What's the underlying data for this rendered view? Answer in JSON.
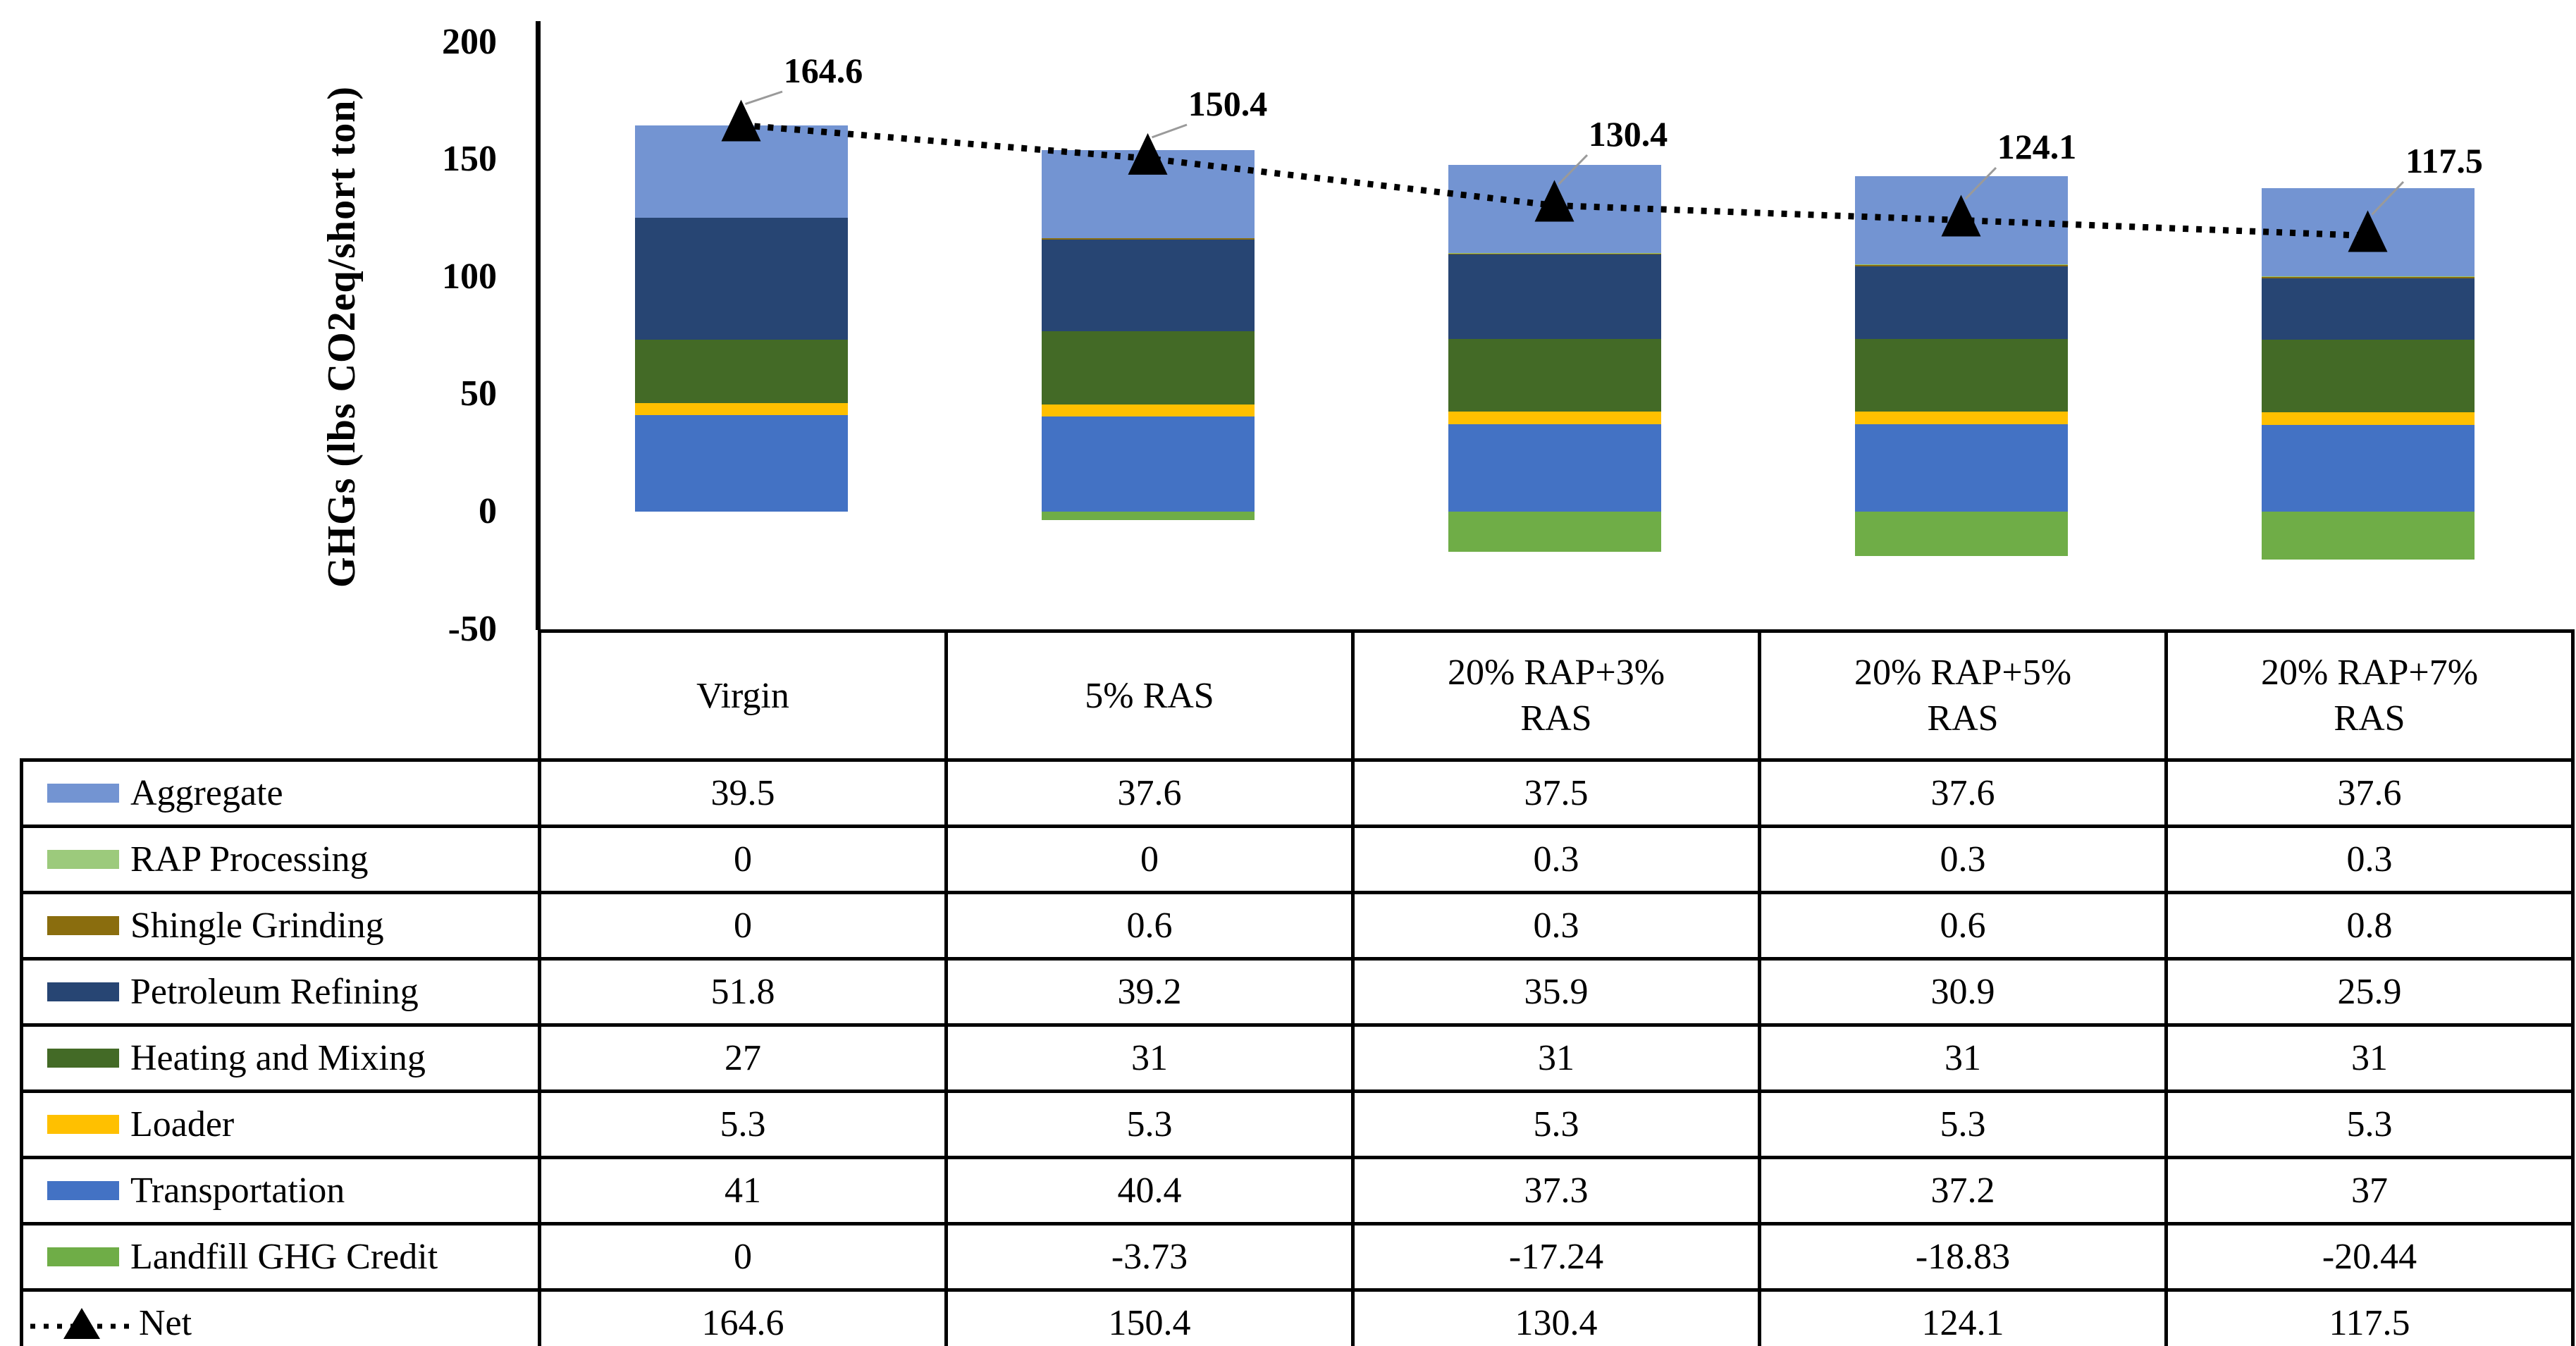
{
  "chart_data": {
    "type": "bar",
    "stacked": true,
    "title": "",
    "xlabel": "",
    "ylabel": "GHGs (lbs CO2eq/short ton)",
    "ylim": [
      -50,
      200
    ],
    "yticks": [
      200,
      150,
      100,
      50,
      0,
      -50
    ],
    "grid": false,
    "legend_position": "table-left",
    "categories": [
      "Virgin",
      "5% RAS",
      "20% RAP+3% RAS",
      "20% RAP+5% RAS",
      "20% RAP+7% RAS"
    ],
    "series": [
      {
        "name": "Aggregate",
        "color": "#7394d2",
        "values": [
          39.5,
          37.6,
          37.5,
          37.6,
          37.6
        ]
      },
      {
        "name": "RAP Processing",
        "color": "#9cca7c",
        "values": [
          0,
          0,
          0.3,
          0.3,
          0.3
        ]
      },
      {
        "name": "Shingle Grinding",
        "color": "#8a6d0e",
        "values": [
          0,
          0.6,
          0.3,
          0.6,
          0.8
        ]
      },
      {
        "name": "Petroleum Refining",
        "color": "#274573",
        "values": [
          51.8,
          39.2,
          35.9,
          30.9,
          25.9
        ]
      },
      {
        "name": "Heating and Mixing",
        "color": "#436a26",
        "values": [
          27,
          31,
          31,
          31,
          31
        ]
      },
      {
        "name": "Loader",
        "color": "#ffc000",
        "values": [
          5.3,
          5.3,
          5.3,
          5.3,
          5.3
        ]
      },
      {
        "name": "Transportation",
        "color": "#4372c4",
        "values": [
          41,
          40.4,
          37.3,
          37.2,
          37
        ]
      },
      {
        "name": "Landfill GHG Credit",
        "color": "#6fad47",
        "values": [
          0,
          -3.73,
          -17.24,
          -18.83,
          -20.44
        ]
      }
    ],
    "stack_order_bottom_to_top": [
      "Transportation",
      "Loader",
      "Heating and Mixing",
      "Petroleum Refining",
      "Shingle Grinding",
      "RAP Processing",
      "Aggregate"
    ],
    "net_series": {
      "name": "Net",
      "marker": "filled-triangle-up",
      "line_style": "dotted",
      "color": "#000000",
      "values": [
        164.6,
        150.4,
        130.4,
        124.1,
        117.5
      ],
      "labels": [
        "164.6",
        "150.4",
        "130.4",
        "124.1",
        "117.5"
      ]
    }
  },
  "table": {
    "header": [
      "Virgin",
      "5% RAS",
      "20% RAP+3%\nRAS",
      "20% RAP+5%\nRAS",
      "20% RAP+7%\nRAS"
    ],
    "rows": [
      {
        "label": "Aggregate",
        "swatch": "#7394d2",
        "values": [
          "39.5",
          "37.6",
          "37.5",
          "37.6",
          "37.6"
        ]
      },
      {
        "label": "RAP Processing",
        "swatch": "#9cca7c",
        "values": [
          "0",
          "0",
          "0.3",
          "0.3",
          "0.3"
        ]
      },
      {
        "label": "Shingle Grinding",
        "swatch": "#8a6d0e",
        "values": [
          "0",
          "0.6",
          "0.3",
          "0.6",
          "0.8"
        ]
      },
      {
        "label": "Petroleum Refining",
        "swatch": "#274573",
        "values": [
          "51.8",
          "39.2",
          "35.9",
          "30.9",
          "25.9"
        ]
      },
      {
        "label": "Heating and Mixing",
        "swatch": "#436a26",
        "values": [
          "27",
          "31",
          "31",
          "31",
          "31"
        ]
      },
      {
        "label": "Loader",
        "swatch": "#ffc000",
        "values": [
          "5.3",
          "5.3",
          "5.3",
          "5.3",
          "5.3"
        ]
      },
      {
        "label": "Transportation",
        "swatch": "#4372c4",
        "values": [
          "41",
          "40.4",
          "37.3",
          "37.2",
          "37"
        ]
      },
      {
        "label": "Landfill GHG Credit",
        "swatch": "#6fad47",
        "values": [
          "0",
          "-3.73",
          "-17.24",
          "-18.83",
          "-20.44"
        ]
      },
      {
        "label": "Net",
        "swatch": "net-marker-key",
        "values": [
          "164.6",
          "150.4",
          "130.4",
          "124.1",
          "117.5"
        ]
      }
    ]
  }
}
